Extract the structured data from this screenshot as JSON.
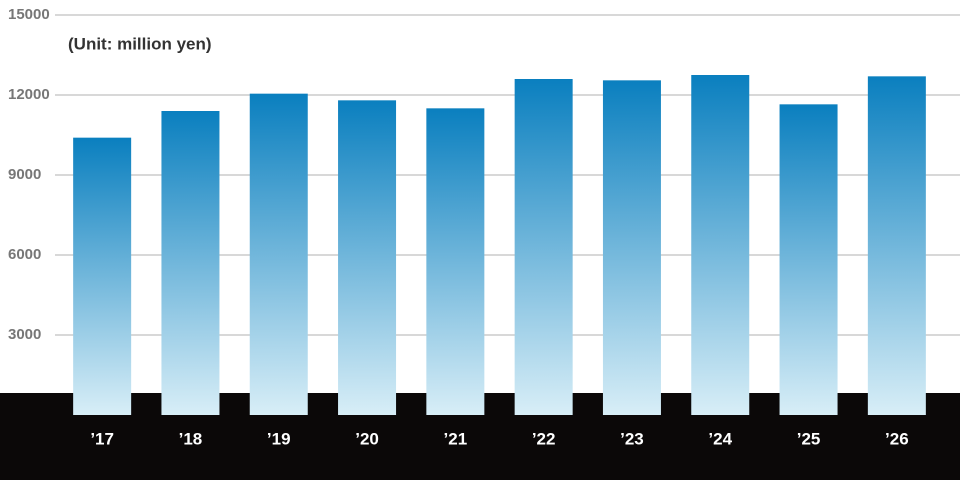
{
  "chart_data": {
    "type": "bar",
    "subtitle": "(Unit: million yen)",
    "categories": [
      "’17",
      "’18",
      "’19",
      "’20",
      "’21",
      "’22",
      "’23",
      "’24",
      "’25",
      "’26"
    ],
    "values": [
      10400,
      11400,
      12050,
      11800,
      11500,
      12600,
      12550,
      12750,
      11650,
      12700
    ],
    "color": "#0a7fbf",
    "ylim": [
      0,
      15000
    ],
    "yticks": [
      3000,
      6000,
      9000,
      12000,
      15000
    ],
    "grid": true
  }
}
